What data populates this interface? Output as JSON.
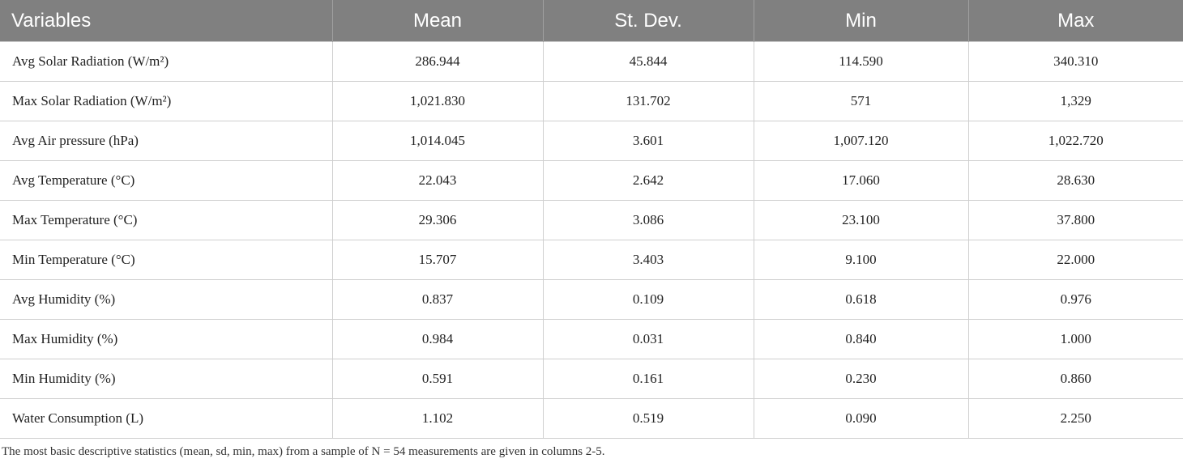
{
  "table": {
    "header": [
      "Variables",
      "Mean",
      "St. Dev.",
      "Min",
      "Max"
    ],
    "rows": [
      [
        "Avg Solar Radiation (W/m²)",
        "286.944",
        "45.844",
        "114.590",
        "340.310"
      ],
      [
        "Max Solar Radiation (W/m²)",
        "1,021.830",
        "131.702",
        "571",
        "1,329"
      ],
      [
        "Avg Air pressure (hPa)",
        "1,014.045",
        "3.601",
        "1,007.120",
        "1,022.720"
      ],
      [
        "Avg Temperature (°C)",
        "22.043",
        "2.642",
        "17.060",
        "28.630"
      ],
      [
        "Max Temperature (°C)",
        "29.306",
        "3.086",
        "23.100",
        "37.800"
      ],
      [
        "Min Temperature (°C)",
        "15.707",
        "3.403",
        "9.100",
        "22.000"
      ],
      [
        "Avg Humidity (%)",
        "0.837",
        "0.109",
        "0.618",
        "0.976"
      ],
      [
        "Max Humidity (%)",
        "0.984",
        "0.031",
        "0.840",
        "1.000"
      ],
      [
        "Min Humidity (%)",
        "0.591",
        "0.161",
        "0.230",
        "0.860"
      ],
      [
        "Water Consumption (L)",
        "1.102",
        "0.519",
        "0.090",
        "2.250"
      ]
    ]
  },
  "footnote": "The most basic descriptive statistics (mean, sd, min, max) from a sample of N = 54 measurements are given in columns 2-5."
}
